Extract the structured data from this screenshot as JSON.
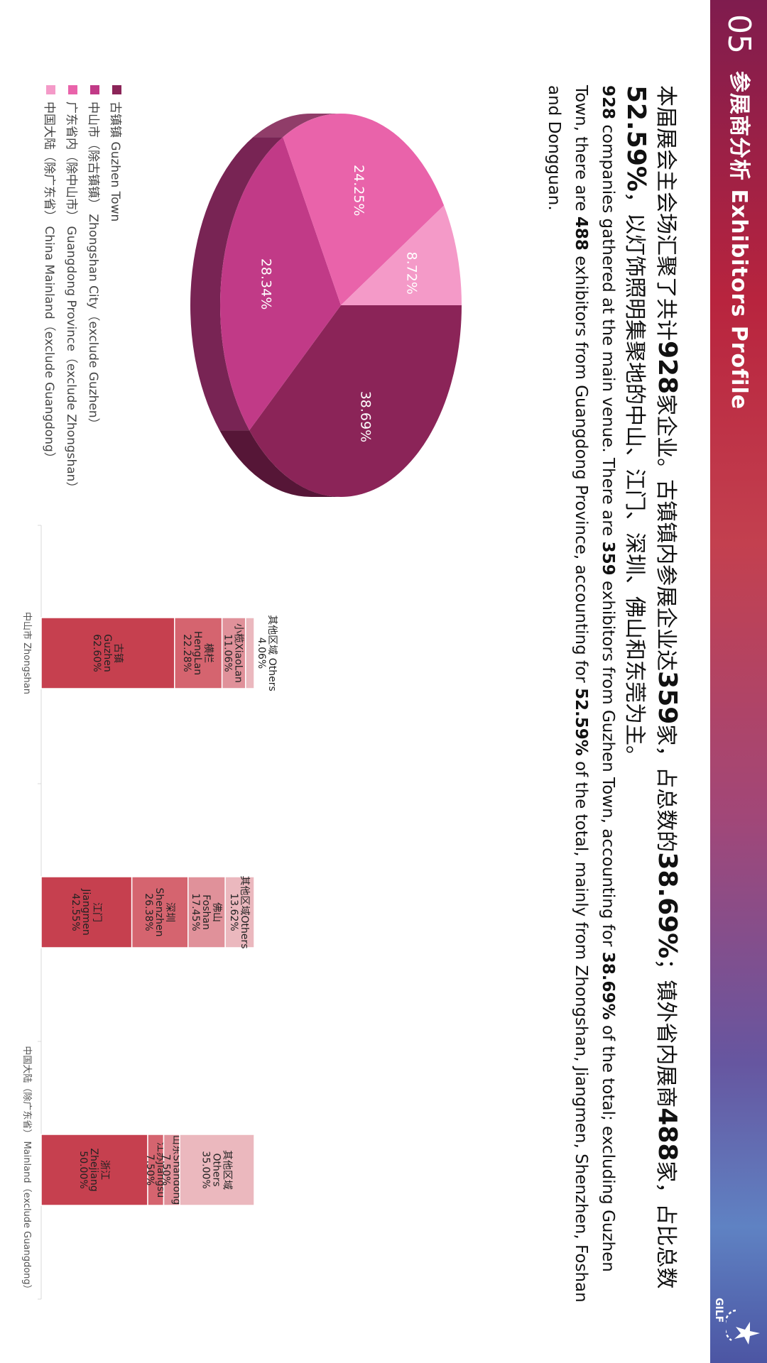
{
  "header": {
    "number": "05",
    "title": "参展商分析  Exhibitors Profile",
    "logo_text": "GILF"
  },
  "intro_cn": {
    "p1": "本届展会主会场汇聚了共计",
    "n1": "928",
    "p2": "家企业。古镇镇内参展企业达",
    "n2": "359",
    "p3": "家，占总数的",
    "n3": "38.69%",
    "p4": "；镇外省内展商",
    "n4": "488",
    "p5": "家，占比总数",
    "n5": "52.59%",
    "p6": "，以灯饰照明集聚地的中山、江门、深圳、佛山和东莞为主。"
  },
  "intro_en": {
    "n1": "928",
    "p1": " companies gathered at the main venue. There are ",
    "n2": "359",
    "p2": " exhibitors from Guzhen Town, accounting for ",
    "n3": "38.69%",
    "p3": " of the total; excluding Guzhen Town, there are ",
    "n4": "488",
    "p4": " exhibitors from Guangdong Province, accounting for ",
    "n5": "52.59%",
    "p5": " of the total, mainly from Zhongshan, Jiangmen, Shenzhen, Foshan and Dongguan."
  },
  "colors": {
    "guzhen": "#8b2458",
    "zhongshan": "#c13a87",
    "guangdong": "#e963aa",
    "mainland": "#f49ac8",
    "bar_main": "#c6404f",
    "bar_2": "#d5646f",
    "bar_3": "#e0919a",
    "bar_4": "#ebb8be"
  },
  "chart_data": [
    {
      "type": "pie",
      "labels": [
        "古镇镇 Guzhen Town",
        "中山市（除古镇镇） Zhongshan City（exclude Guzhen）",
        "广东省内（除中山市） Guangdong Province（exclude Zhongshan）",
        "中国大陆（除广东省） China Mainland（exclude Guangdong）"
      ],
      "values": [
        38.69,
        28.34,
        24.25,
        8.72
      ],
      "value_labels": [
        "38.69%",
        "28.34%",
        "24.25%",
        "8.72%"
      ],
      "legend_position": "bottom-left"
    },
    {
      "type": "bar",
      "stacked": true,
      "percent": true,
      "categories": [
        "中山市 Zhongshan",
        "",
        "中国大陆（除广东省） Mainland（exclude Guangdong）"
      ],
      "stacks": [
        {
          "segments": [
            {
              "name": "古镇",
              "name_en": "Guzhen",
              "value": 62.6,
              "label": "62.60%"
            },
            {
              "name": "横栏",
              "name_en": "HengLan",
              "value": 22.28,
              "label": "22.28%"
            },
            {
              "name": "小榄",
              "name_en": "XiaoLan",
              "value": 11.06,
              "label": "11.06%"
            },
            {
              "name": "其他区域",
              "name_en": "Others",
              "value": 4.06,
              "label": "4.06%"
            }
          ]
        },
        {
          "segments": [
            {
              "name": "江门",
              "name_en": "Jiangmen",
              "value": 42.55,
              "label": "42.55%"
            },
            {
              "name": "深圳",
              "name_en": "Shenzhen",
              "value": 26.38,
              "label": "26.38%"
            },
            {
              "name": "佛山",
              "name_en": "Foshan",
              "value": 17.45,
              "label": "17.45%"
            },
            {
              "name": "其他区域",
              "name_en": "Others",
              "value": 13.62,
              "label": "13.62%"
            }
          ]
        },
        {
          "segments": [
            {
              "name": "浙江",
              "name_en": "Zhejiang",
              "value": 50.0,
              "label": "50.00%"
            },
            {
              "name": "江苏",
              "name_en": "Jiangsu",
              "value": 7.5,
              "label": "7.50%"
            },
            {
              "name": "山东",
              "name_en": "Shandong",
              "value": 7.5,
              "label": "7.50%"
            },
            {
              "name": "其他区域",
              "name_en": "Others",
              "value": 35.0,
              "label": "35.00%"
            }
          ]
        }
      ]
    }
  ]
}
